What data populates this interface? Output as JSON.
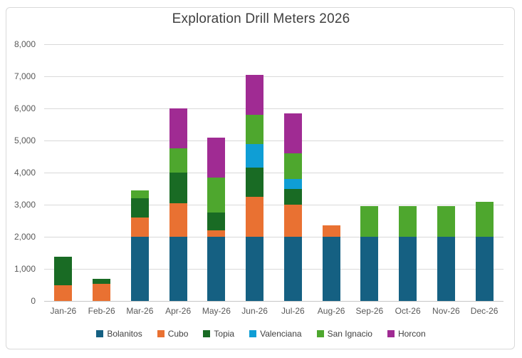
{
  "chart_data": {
    "type": "bar",
    "stacked": true,
    "title": "Exploration Drill Meters 2026",
    "xlabel": "",
    "ylabel": "",
    "ylim": [
      0,
      8000
    ],
    "ytick_step": 1000,
    "ytick_labels": [
      "0",
      "1,000",
      "2,000",
      "3,000",
      "4,000",
      "5,000",
      "6,000",
      "7,000",
      "8,000"
    ],
    "grid": "horizontal",
    "legend_position": "bottom",
    "categories": [
      "Jan-26",
      "Feb-26",
      "Mar-26",
      "Apr-26",
      "May-26",
      "Jun-26",
      "Jul-26",
      "Aug-26",
      "Sep-26",
      "Oct-26",
      "Nov-26",
      "Dec-26"
    ],
    "series": [
      {
        "name": "Bolanitos",
        "color": "#156082",
        "values": [
          0,
          0,
          2000,
          2000,
          2000,
          2000,
          2000,
          2000,
          2000,
          2000,
          2000,
          2000
        ]
      },
      {
        "name": "Cubo",
        "color": "#E97132",
        "values": [
          480,
          530,
          600,
          1050,
          200,
          1250,
          1000,
          350,
          0,
          0,
          0,
          0
        ]
      },
      {
        "name": "Topia",
        "color": "#196B24",
        "values": [
          900,
          150,
          600,
          950,
          550,
          900,
          500,
          0,
          0,
          0,
          0,
          0
        ]
      },
      {
        "name": "Valenciana",
        "color": "#0F9ED5",
        "values": [
          0,
          0,
          0,
          0,
          0,
          750,
          300,
          0,
          0,
          0,
          0,
          0
        ]
      },
      {
        "name": "San Ignacio",
        "color": "#4EA72E",
        "values": [
          0,
          0,
          250,
          750,
          1100,
          900,
          800,
          0,
          950,
          950,
          950,
          1100
        ]
      },
      {
        "name": "Horcon",
        "color": "#A02B93",
        "values": [
          0,
          0,
          0,
          1250,
          1250,
          1250,
          1250,
          0,
          0,
          0,
          0,
          0
        ]
      }
    ],
    "totals": [
      1380,
      680,
      3450,
      6000,
      5100,
      7050,
      5850,
      2350,
      2950,
      2950,
      2950,
      3100
    ]
  },
  "colors": {
    "frame_border": "#D9D9D9",
    "gridline": "#D9D9D9",
    "axis_line": "#C6C6C6",
    "axis_text": "#595959",
    "title_text": "#404040",
    "background": "#FFFFFF"
  }
}
